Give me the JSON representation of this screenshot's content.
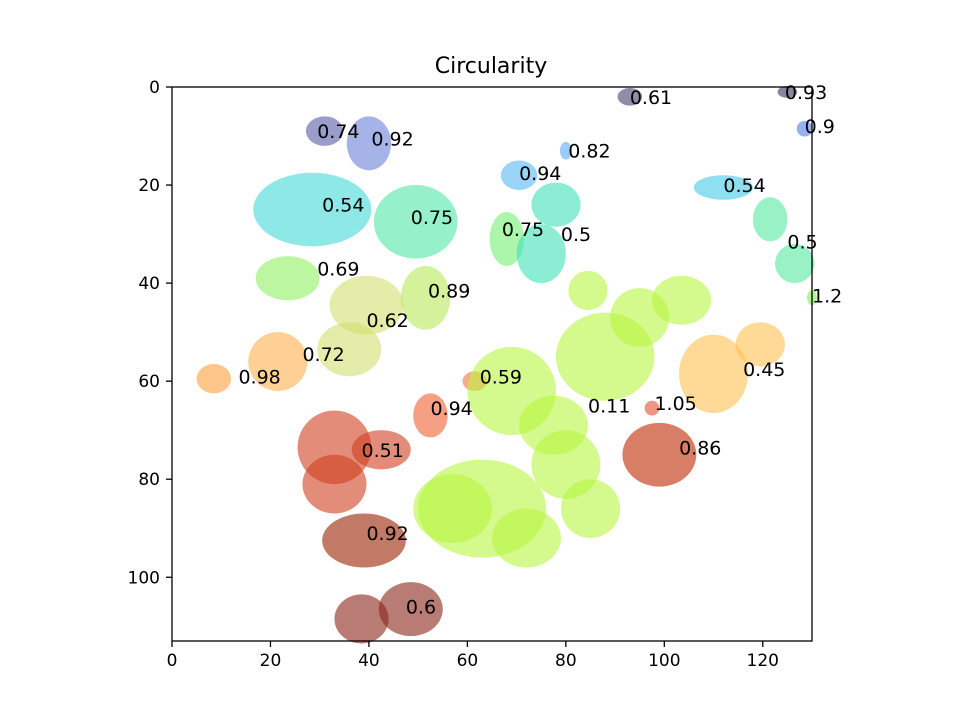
{
  "chart_data": {
    "type": "heatmap",
    "title": "Circularity",
    "xlabel": "",
    "ylabel": "",
    "xlim": [
      0,
      130
    ],
    "ylim": [
      113,
      0
    ],
    "x_ticks": [
      0,
      20,
      40,
      60,
      80,
      100,
      120
    ],
    "y_ticks": [
      0,
      20,
      40,
      60,
      80,
      100
    ],
    "grid": false,
    "regions": [
      {
        "label": "0.74",
        "x": 29.5,
        "y": 9,
        "color": "#5a5aa8",
        "blobs": [
          [
            31,
            9,
            3.8,
            3
          ]
        ]
      },
      {
        "label": "0.92",
        "x": 40.5,
        "y": 10.5,
        "color": "#6a80d8",
        "blobs": [
          [
            40,
            11.5,
            4.5,
            5.5
          ]
        ]
      },
      {
        "label": "0.61",
        "x": 93,
        "y": 2,
        "color": "#4a3f70",
        "blobs": [
          [
            93,
            2,
            2.5,
            1.8
          ]
        ]
      },
      {
        "label": "0.93",
        "x": 124.5,
        "y": 1,
        "color": "#3d3660",
        "blobs": [
          [
            125,
            1,
            2,
            1.2
          ]
        ]
      },
      {
        "label": "0.9",
        "x": 128.5,
        "y": 8,
        "color": "#4a7ee8",
        "blobs": [
          [
            128.5,
            8.5,
            1.6,
            1.6
          ]
        ]
      },
      {
        "label": "0.82",
        "x": 80.5,
        "y": 13,
        "color": "#5aa8f5",
        "blobs": [
          [
            80,
            13,
            1.2,
            1.8
          ]
        ]
      },
      {
        "label": "0.94",
        "x": 70.5,
        "y": 17.5,
        "color": "#55b8f5",
        "blobs": [
          [
            70.5,
            18,
            3.7,
            3
          ]
        ]
      },
      {
        "label": "0.54",
        "x": 112,
        "y": 20,
        "color": "#45c8e8",
        "blobs": [
          [
            112,
            20.5,
            6,
            2.5
          ]
        ]
      },
      {
        "label": "0.54",
        "x": 30.5,
        "y": 24,
        "color": "#45d8d8",
        "blobs": [
          [
            28.5,
            25,
            12,
            7.5
          ]
        ]
      },
      {
        "label": "0.75",
        "x": 48.5,
        "y": 26.5,
        "color": "#50e8a8",
        "blobs": [
          [
            49.5,
            27.5,
            8.5,
            7.5
          ]
        ]
      },
      {
        "label": "0.75",
        "x": 67,
        "y": 29,
        "color": "#75f075",
        "blobs": [
          [
            68,
            31,
            3.5,
            5.5
          ]
        ]
      },
      {
        "label": "0.5",
        "x": 79,
        "y": 30,
        "color": "#40e0b8",
        "blobs": [
          [
            78,
            24,
            5,
            4.5
          ],
          [
            75,
            34,
            5,
            6
          ]
        ]
      },
      {
        "label": "0.5",
        "x": 125,
        "y": 31.5,
        "color": "#55e8a0",
        "blobs": [
          [
            121.5,
            27,
            3.5,
            4.5
          ],
          [
            126.5,
            36,
            4,
            4
          ]
        ]
      },
      {
        "label": "0.69",
        "x": 29.5,
        "y": 37,
        "color": "#90f060",
        "blobs": [
          [
            23.5,
            39,
            6.5,
            4.5
          ]
        ]
      },
      {
        "label": "1.2",
        "x": 130,
        "y": 42.5,
        "color": "#80f050",
        "blobs": [
          [
            130,
            43,
            1,
            1.5
          ]
        ]
      },
      {
        "label": "0.89",
        "x": 52,
        "y": 41.5,
        "color": "#b8e85a",
        "blobs": [
          [
            51.5,
            43,
            5,
            6.5
          ]
        ]
      },
      {
        "label": "0.62",
        "x": 39.5,
        "y": 47.5,
        "color": "#d0e070",
        "blobs": [
          [
            39.5,
            44.5,
            7.5,
            6
          ],
          [
            36,
            53.5,
            6.5,
            5.5
          ]
        ]
      },
      {
        "label": "0.72",
        "x": 26.5,
        "y": 54.5,
        "color": "#ffb050",
        "blobs": [
          [
            21.5,
            56,
            6,
            6
          ]
        ]
      },
      {
        "label": "0.98",
        "x": 13.5,
        "y": 59,
        "color": "#ffa040",
        "blobs": [
          [
            8.5,
            59.5,
            3.5,
            3
          ]
        ]
      },
      {
        "label": "0.45",
        "x": 116,
        "y": 57.5,
        "color": "#ffc050",
        "blobs": [
          [
            110,
            58.5,
            7,
            8
          ],
          [
            119.5,
            52.5,
            5,
            4.5
          ]
        ]
      },
      {
        "label": "0.59",
        "x": 62.5,
        "y": 59,
        "color": "#ff7040",
        "blobs": [
          [
            61.5,
            60,
            2.5,
            2
          ]
        ]
      },
      {
        "label": "0.94",
        "x": 52.5,
        "y": 65.5,
        "color": "#f06030",
        "blobs": [
          [
            52.5,
            67,
            3.5,
            4.5
          ]
        ]
      },
      {
        "label": "1.05",
        "x": 98,
        "y": 64.5,
        "color": "#e05030",
        "blobs": [
          [
            97.5,
            65.5,
            1.5,
            1.5
          ]
        ]
      },
      {
        "label": "0.51",
        "x": 38.5,
        "y": 74,
        "color": "#d04020",
        "blobs": [
          [
            33,
            73.5,
            7.5,
            7.5
          ],
          [
            33,
            81,
            6.5,
            6
          ],
          [
            42.5,
            74,
            6,
            4
          ]
        ]
      },
      {
        "label": "0.86",
        "x": 103,
        "y": 73.5,
        "color": "#c02800",
        "blobs": [
          [
            99,
            75,
            7.5,
            6.5
          ]
        ]
      },
      {
        "label": "0.92",
        "x": 39.5,
        "y": 91,
        "color": "#9a2000",
        "blobs": [
          [
            39,
            92.5,
            8.5,
            5.5
          ]
        ]
      },
      {
        "label": "0.6",
        "x": 47.5,
        "y": 106,
        "color": "#8a2518",
        "blobs": [
          [
            38.5,
            108.5,
            5.5,
            5
          ],
          [
            48.5,
            106.5,
            6.5,
            5.5
          ]
        ]
      },
      {
        "label": "0.11",
        "x": 84.5,
        "y": 65,
        "color": "#b8f540",
        "blobs": [
          [
            88,
            55,
            10,
            9
          ],
          [
            103.5,
            43.5,
            6,
            5
          ],
          [
            95,
            47,
            6,
            6
          ],
          [
            84.5,
            41.5,
            4,
            4
          ],
          [
            69,
            62,
            9,
            9
          ],
          [
            77.5,
            69,
            7,
            6
          ],
          [
            80,
            77,
            7,
            7
          ],
          [
            63,
            86,
            13,
            10
          ],
          [
            57,
            86,
            8,
            7
          ],
          [
            72,
            92,
            7,
            6
          ],
          [
            85,
            86,
            6,
            6
          ]
        ]
      }
    ]
  }
}
